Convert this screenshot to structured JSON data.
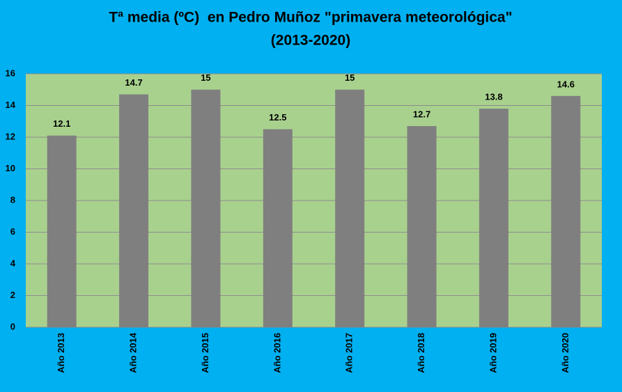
{
  "chart_data": {
    "type": "bar",
    "title": "Tª media (ºC)  en Pedro Muñoz \"primavera meteorológica\"",
    "subtitle": "(2013-2020)",
    "categories": [
      "Año 2013",
      "Año 2014",
      "Año 2015",
      "Año 2016",
      "Año 2017",
      "Año 2018",
      "Año 2019",
      "Año 2020"
    ],
    "values": [
      12.1,
      14.7,
      15,
      12.5,
      15,
      12.7,
      13.8,
      14.6
    ],
    "color": "#7f7f7f",
    "ylim": [
      0,
      16
    ],
    "yticks": [
      0,
      2,
      4,
      6,
      8,
      10,
      12,
      14,
      16
    ],
    "grid": true
  }
}
